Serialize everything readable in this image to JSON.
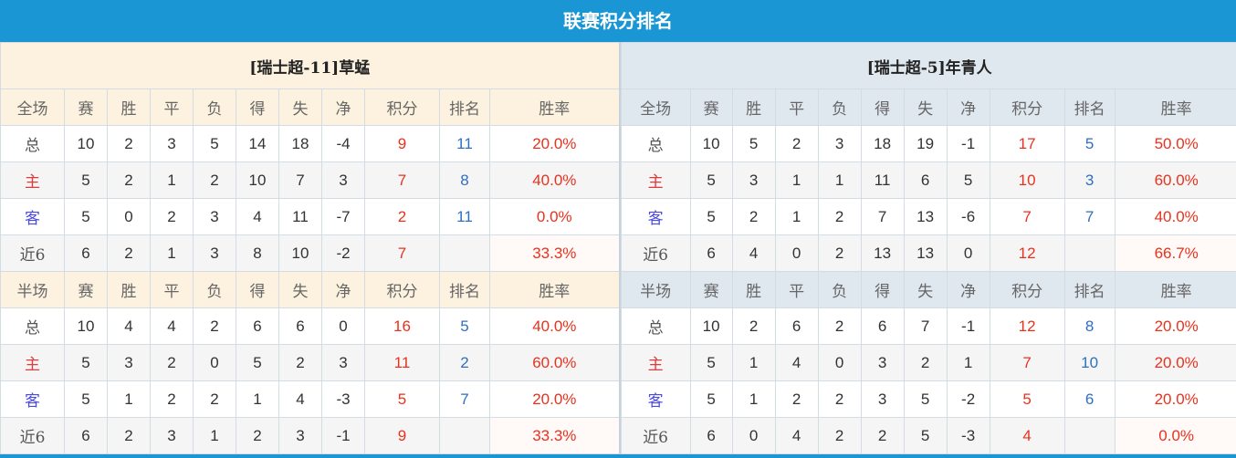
{
  "title": "联赛积分排名",
  "colors": {
    "accent": "#1a96d4",
    "red": "#e8321e",
    "blue": "#2f6fc1"
  },
  "headers_full": [
    "全场",
    "赛",
    "胜",
    "平",
    "负",
    "得",
    "失",
    "净",
    "积分",
    "排名",
    "胜率"
  ],
  "headers_half": [
    "半场",
    "赛",
    "胜",
    "平",
    "负",
    "得",
    "失",
    "净",
    "积分",
    "排名",
    "胜率"
  ],
  "teams": [
    {
      "name": "[瑞士超-11]草蜢",
      "full": [
        [
          "总",
          "10",
          "2",
          "3",
          "5",
          "14",
          "18",
          "-4",
          "9",
          "11",
          "20.0%"
        ],
        [
          "主",
          "5",
          "2",
          "1",
          "2",
          "10",
          "7",
          "3",
          "7",
          "8",
          "40.0%"
        ],
        [
          "客",
          "5",
          "0",
          "2",
          "3",
          "4",
          "11",
          "-7",
          "2",
          "11",
          "0.0%"
        ],
        [
          "近6",
          "6",
          "2",
          "1",
          "3",
          "8",
          "10",
          "-2",
          "7",
          "",
          "33.3%"
        ]
      ],
      "half": [
        [
          "总",
          "10",
          "4",
          "4",
          "2",
          "6",
          "6",
          "0",
          "16",
          "5",
          "40.0%"
        ],
        [
          "主",
          "5",
          "3",
          "2",
          "0",
          "5",
          "2",
          "3",
          "11",
          "2",
          "60.0%"
        ],
        [
          "客",
          "5",
          "1",
          "2",
          "2",
          "1",
          "4",
          "-3",
          "5",
          "7",
          "20.0%"
        ],
        [
          "近6",
          "6",
          "2",
          "3",
          "1",
          "2",
          "3",
          "-1",
          "9",
          "",
          "33.3%"
        ]
      ]
    },
    {
      "name": "[瑞士超-5]年青人",
      "full": [
        [
          "总",
          "10",
          "5",
          "2",
          "3",
          "18",
          "19",
          "-1",
          "17",
          "5",
          "50.0%"
        ],
        [
          "主",
          "5",
          "3",
          "1",
          "1",
          "11",
          "6",
          "5",
          "10",
          "3",
          "60.0%"
        ],
        [
          "客",
          "5",
          "2",
          "1",
          "2",
          "7",
          "13",
          "-6",
          "7",
          "7",
          "40.0%"
        ],
        [
          "近6",
          "6",
          "4",
          "0",
          "2",
          "13",
          "13",
          "0",
          "12",
          "",
          "66.7%"
        ]
      ],
      "half": [
        [
          "总",
          "10",
          "2",
          "6",
          "2",
          "6",
          "7",
          "-1",
          "12",
          "8",
          "20.0%"
        ],
        [
          "主",
          "5",
          "1",
          "4",
          "0",
          "3",
          "2",
          "1",
          "7",
          "10",
          "20.0%"
        ],
        [
          "客",
          "5",
          "1",
          "2",
          "2",
          "3",
          "5",
          "-2",
          "5",
          "6",
          "20.0%"
        ],
        [
          "近6",
          "6",
          "0",
          "4",
          "2",
          "2",
          "5",
          "-3",
          "4",
          "",
          "0.0%"
        ]
      ]
    }
  ]
}
